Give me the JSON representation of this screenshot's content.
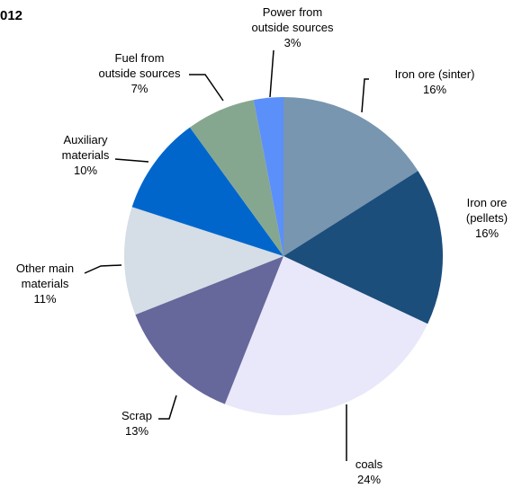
{
  "chart_data": {
    "type": "pie",
    "title": "012",
    "categories": [
      "Iron ore (sinter)",
      "Iron ore\n(pellets)",
      "coals",
      "Scrap",
      "Other main\nmaterials",
      "Auxiliary\nmaterials",
      "Fuel from\noutside sources",
      "Power from\noutside sources"
    ],
    "values": [
      16,
      16,
      24,
      13,
      11,
      10,
      7,
      3
    ],
    "value_labels": [
      "16%",
      "16%",
      "24%",
      "13%",
      "11%",
      "10%",
      "7%",
      "3%"
    ],
    "colors": [
      "#7896b0",
      "#1c4e7c",
      "#e8e8fa",
      "#66679a",
      "#d5dde6",
      "#0066cc",
      "#86a78f",
      "#5b8ff9"
    ]
  }
}
